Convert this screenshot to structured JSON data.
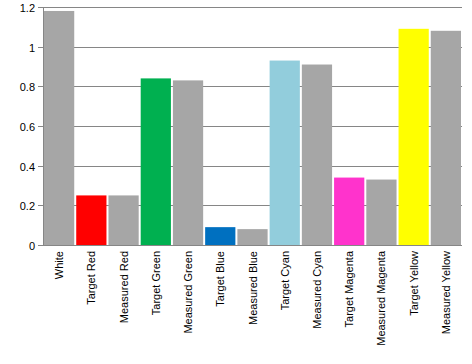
{
  "chart_data": {
    "type": "bar",
    "categories": [
      "White",
      "Target Red",
      "Measured Red",
      "Target Green",
      "Measured Green",
      "Target Blue",
      "Measured Blue",
      "Target Cyan",
      "Measured Cyan",
      "Target Magenta",
      "Measured Magenta",
      "Target Yellow",
      "Measured Yellow"
    ],
    "values": [
      1.18,
      0.25,
      0.25,
      0.84,
      0.83,
      0.09,
      0.08,
      0.93,
      0.91,
      0.34,
      0.33,
      1.09,
      1.08
    ],
    "colors": [
      "#a6a6a6",
      "#ff0000",
      "#a6a6a6",
      "#00b050",
      "#a6a6a6",
      "#0070c0",
      "#a6a6a6",
      "#92cddc",
      "#a6a6a6",
      "#ff33cc",
      "#a6a6a6",
      "#ffff00",
      "#a6a6a6"
    ],
    "ylim": [
      0,
      1.2
    ],
    "yticks": [
      0,
      0.2,
      0.4,
      0.6,
      0.8,
      1,
      1.2
    ],
    "grid": true
  }
}
